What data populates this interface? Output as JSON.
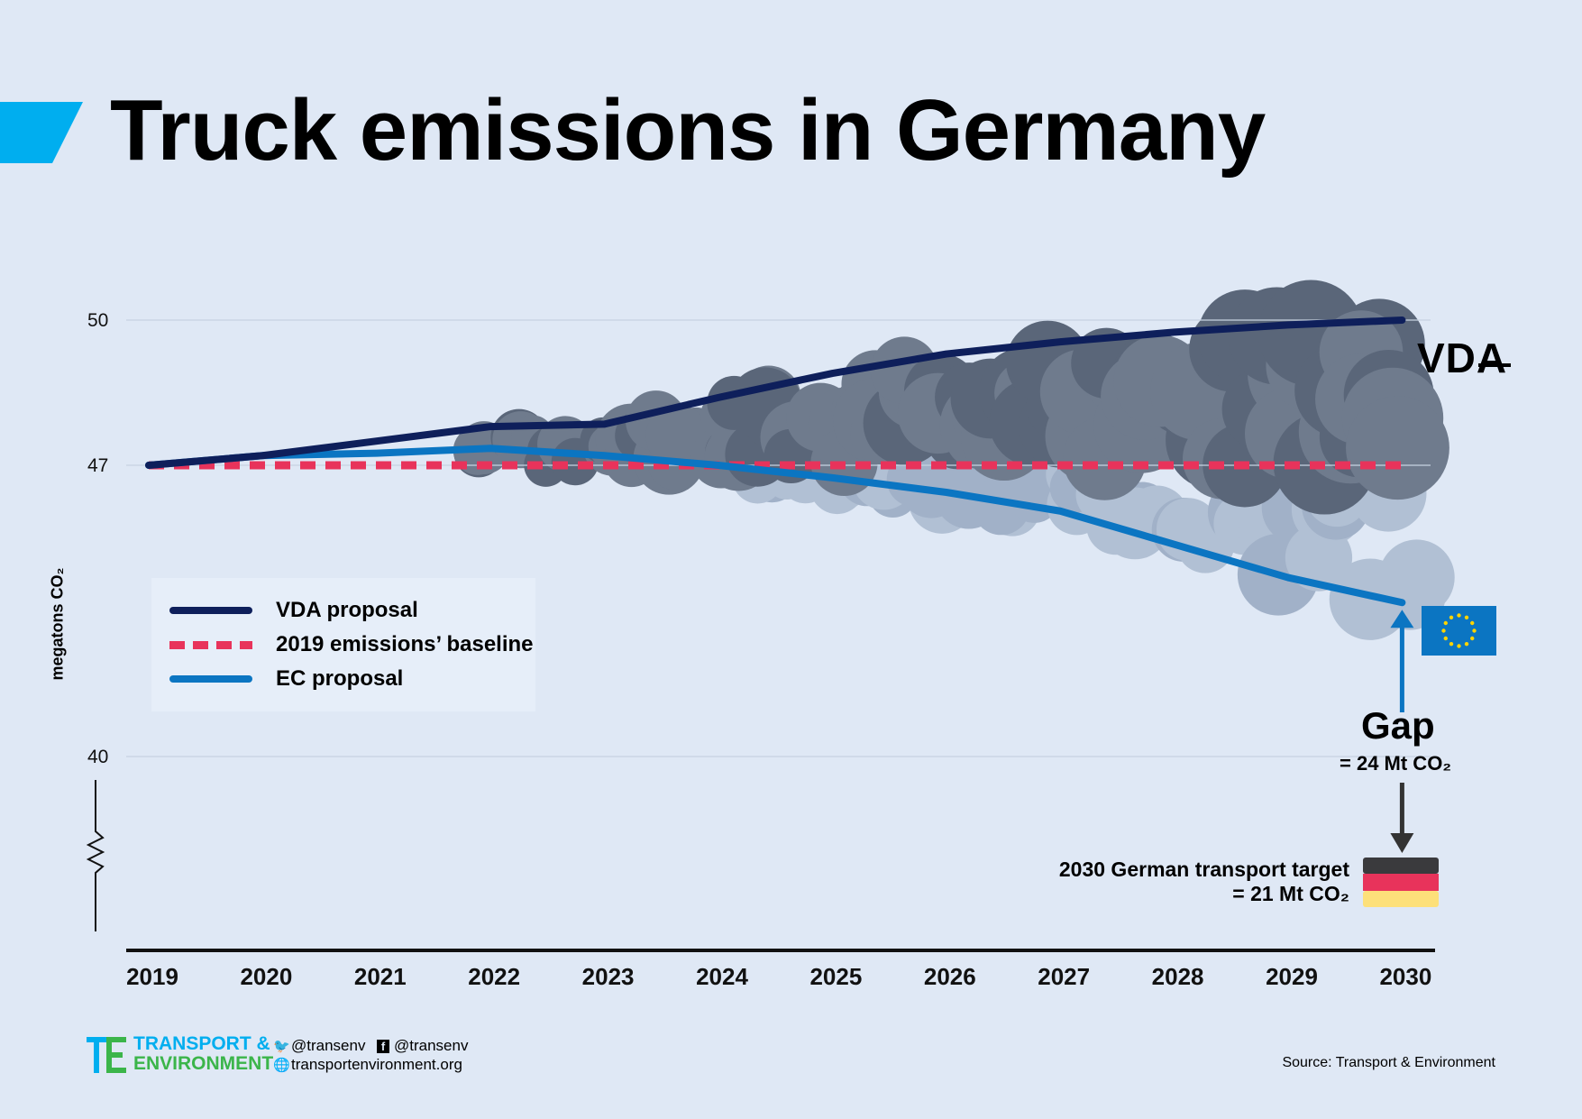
{
  "header": {
    "title": "Truck emissions in Germany"
  },
  "colors": {
    "background": "#dfe8f5",
    "accent": "#00aeef",
    "vda_line": "#0e1f5b",
    "baseline_line": "#e8335b",
    "ec_line": "#0b75c2",
    "smoke_dark": "#6e7a8c",
    "smoke_light": "#a9b9cf"
  },
  "chart_data": {
    "type": "line",
    "title": "Truck emissions in Germany",
    "xlabel": "",
    "ylabel": "megatons CO₂",
    "x": [
      "2019",
      "2020",
      "2021",
      "2022",
      "2023",
      "2024",
      "2025",
      "2026",
      "2027",
      "2028",
      "2029",
      "2030"
    ],
    "y_ticks": [
      50,
      47,
      40
    ],
    "y_tick_labels": [
      "50",
      "47",
      "40"
    ],
    "y_axis_break": true,
    "ylim": [
      36,
      52
    ],
    "grid": true,
    "legend_position": "left",
    "series": [
      {
        "name": "VDA proposal",
        "color": "#0e1f5b",
        "style": "solid",
        "values": [
          47.0,
          47.2,
          47.5,
          47.8,
          47.85,
          48.4,
          48.9,
          49.3,
          49.55,
          49.75,
          49.9,
          50.0
        ]
      },
      {
        "name": "2019 emissions’ baseline",
        "color": "#e8335b",
        "style": "dashed",
        "values": [
          47.0,
          47.0,
          47.0,
          47.0,
          47.0,
          47.0,
          47.0,
          47.0,
          47.0,
          47.0,
          47.0,
          47.0
        ]
      },
      {
        "name": "EC proposal",
        "color": "#0b75c2",
        "style": "solid",
        "values": [
          47.0,
          47.2,
          47.25,
          47.35,
          47.2,
          47.0,
          46.7,
          46.35,
          45.9,
          45.1,
          44.3,
          43.7
        ]
      }
    ],
    "annotations": {
      "vda_logo": "VDA",
      "gap_title": "Gap",
      "gap_value": "= 24 Mt CO₂",
      "target_line1": "2030 German transport target",
      "target_line2": "= 21 Mt CO₂"
    },
    "flags": [
      "eu-flag",
      "german-flag"
    ]
  },
  "footer": {
    "logo_line1": "TRANSPORT &",
    "logo_line2": "ENVIRONMENT",
    "twitter": "@transenv",
    "facebook": "@transenv",
    "website": "transportenvironment.org",
    "source": "Source: Transport & Environment"
  }
}
